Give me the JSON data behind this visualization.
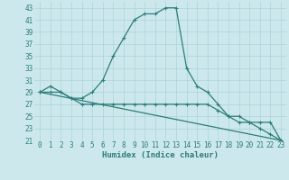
{
  "xlabel": "Humidex (Indice chaleur)",
  "background_color": "#cce8ec",
  "line_color": "#2d7d78",
  "xlim": [
    -0.5,
    23.5
  ],
  "ylim": [
    21,
    44
  ],
  "yticks": [
    21,
    23,
    25,
    27,
    29,
    31,
    33,
    35,
    37,
    39,
    41,
    43
  ],
  "xticks": [
    0,
    1,
    2,
    3,
    4,
    5,
    6,
    7,
    8,
    9,
    10,
    11,
    12,
    13,
    14,
    15,
    16,
    17,
    18,
    19,
    20,
    21,
    22,
    23
  ],
  "curve1_x": [
    0,
    1,
    2,
    3,
    4,
    5,
    6,
    7,
    8,
    9,
    10,
    11,
    12,
    13,
    14,
    15,
    16,
    17,
    18,
    19,
    20,
    21,
    22,
    23
  ],
  "curve1_y": [
    29,
    30,
    29,
    28,
    28,
    29,
    31,
    35,
    38,
    41,
    42,
    42,
    43,
    43,
    33,
    30,
    29,
    27,
    25,
    24,
    24,
    23,
    22,
    21
  ],
  "curve2_x": [
    0,
    1,
    2,
    3,
    4,
    5,
    6,
    7,
    8,
    9,
    10,
    11,
    12,
    13,
    14,
    15,
    16,
    17,
    18,
    19,
    20,
    21,
    22,
    23
  ],
  "curve2_y": [
    29,
    29,
    29,
    28,
    27,
    27,
    27,
    27,
    27,
    27,
    27,
    27,
    27,
    27,
    27,
    27,
    27,
    26,
    25,
    25,
    24,
    24,
    24,
    21
  ],
  "curve3_x": [
    0,
    23
  ],
  "curve3_y": [
    29,
    21
  ],
  "grid_color": "#aad4d8",
  "tick_fontsize": 5.5,
  "xlabel_fontsize": 6.5
}
